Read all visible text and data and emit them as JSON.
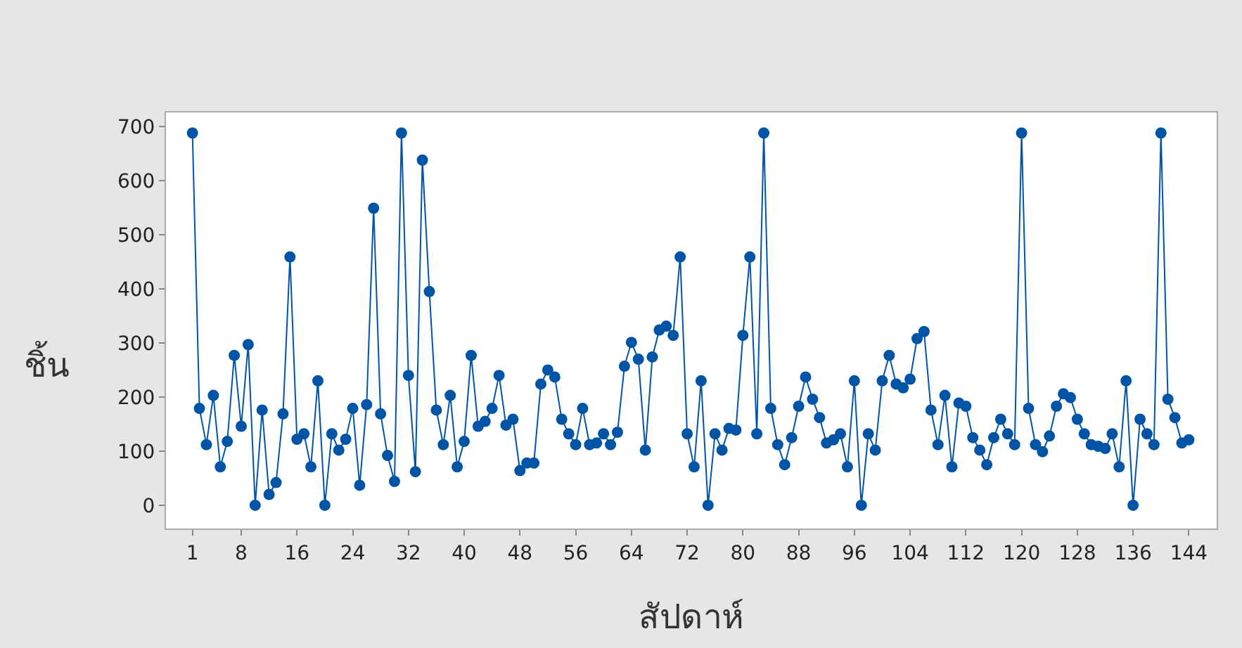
{
  "chart_data": {
    "type": "line",
    "xlabel": "สัปดาห์",
    "ylabel": "ชิ้น",
    "x": [
      1,
      2,
      3,
      4,
      5,
      6,
      7,
      8,
      9,
      10,
      11,
      12,
      13,
      14,
      15,
      16,
      17,
      18,
      19,
      20,
      21,
      22,
      23,
      24,
      25,
      26,
      27,
      28,
      29,
      30,
      31,
      32,
      33,
      34,
      35,
      36,
      37,
      38,
      39,
      40,
      41,
      42,
      43,
      44,
      45,
      46,
      47,
      48,
      49,
      50,
      51,
      52,
      53,
      54,
      55,
      56,
      57,
      58,
      59,
      60,
      61,
      62,
      63,
      64,
      65,
      66,
      67,
      68,
      69,
      70,
      71,
      72,
      73,
      74,
      75,
      76,
      77,
      78,
      79,
      80,
      81,
      82,
      83,
      84,
      85,
      86,
      87,
      88,
      89,
      90,
      91,
      92,
      93,
      94,
      95,
      96,
      97,
      98,
      99,
      100,
      101,
      102,
      103,
      104,
      105,
      106,
      107,
      108,
      109,
      110,
      111,
      112,
      113,
      114,
      115,
      116,
      117,
      118,
      119,
      120,
      121,
      122,
      123,
      124,
      125,
      126,
      127,
      128,
      129,
      130,
      131,
      132,
      133,
      134,
      135,
      136,
      137,
      138,
      139,
      140,
      141,
      142,
      143,
      144
    ],
    "series": [
      {
        "color": "#0054a6",
        "values": [
          688,
          179,
          112,
          203,
          71,
          118,
          277,
          146,
          297,
          0,
          176,
          20,
          42,
          169,
          459,
          122,
          132,
          71,
          230,
          0,
          132,
          102,
          122,
          179,
          37,
          186,
          549,
          169,
          92,
          44,
          688,
          240,
          62,
          638,
          395,
          176,
          112,
          203,
          71,
          118,
          277,
          146,
          155,
          179,
          240,
          148,
          159,
          64,
          78,
          78,
          224,
          250,
          237,
          159,
          132,
          112,
          179,
          112,
          115,
          132,
          112,
          135,
          257,
          301,
          270,
          102,
          274,
          324,
          331,
          314,
          459,
          132,
          71,
          230,
          0,
          132,
          102,
          142,
          139,
          314,
          459,
          132,
          688,
          179,
          112,
          75,
          125,
          183,
          237,
          196,
          162,
          115,
          121,
          132,
          71,
          230,
          0,
          132,
          102,
          230,
          277,
          224,
          217,
          233,
          308,
          321,
          176,
          112,
          203,
          71,
          189,
          183,
          125,
          102,
          75,
          125,
          159,
          132,
          112,
          688,
          179,
          112,
          99,
          128,
          183,
          206,
          199,
          159,
          132,
          112,
          109,
          105,
          132,
          71,
          230,
          0,
          159,
          132,
          112,
          688,
          196,
          162,
          115,
          121
        ]
      }
    ],
    "xlim": [
      -2.8,
      148
    ],
    "ylim": [
      -43,
      726
    ],
    "xticks": [
      1,
      8,
      16,
      24,
      32,
      40,
      48,
      56,
      64,
      72,
      80,
      88,
      96,
      104,
      112,
      120,
      128,
      136,
      144
    ],
    "yticks": [
      0,
      100,
      200,
      300,
      400,
      500,
      600,
      700
    ],
    "marker": "circle",
    "line_style": "solid"
  }
}
